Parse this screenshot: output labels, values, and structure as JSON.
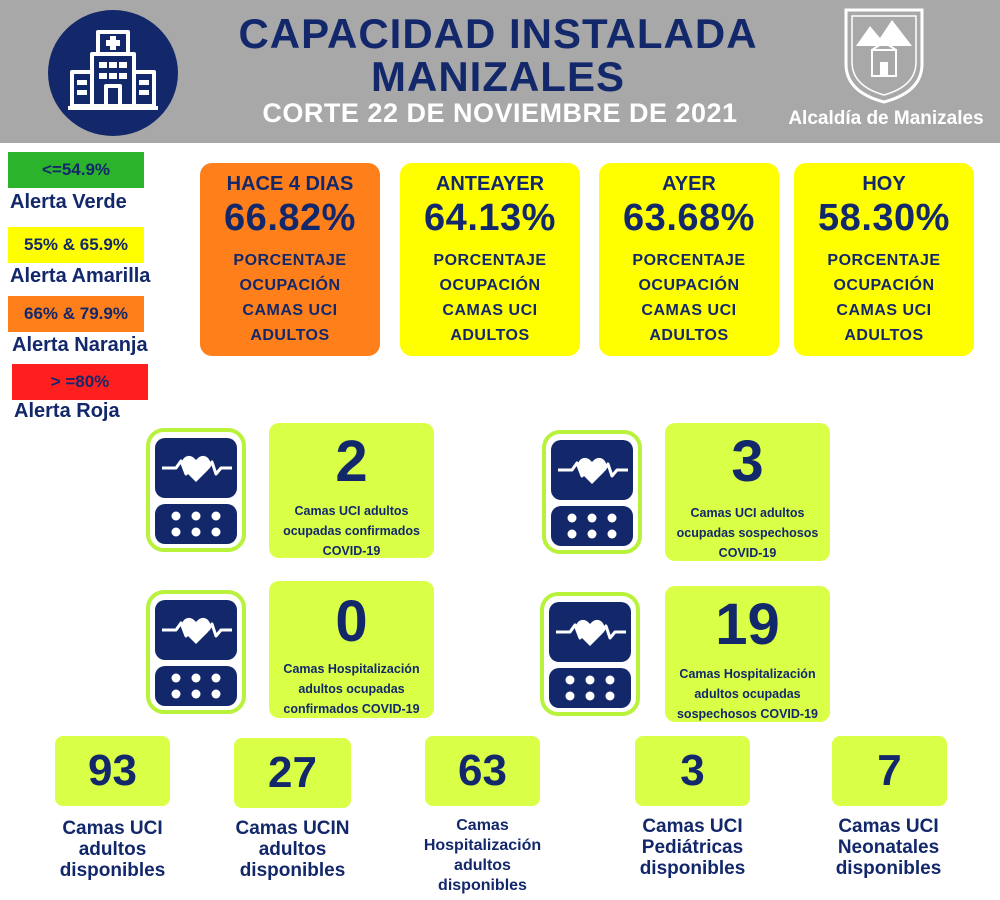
{
  "header": {
    "title_line1": "CAPACIDAD INSTALADA",
    "title_line2": "MANIZALES",
    "subtitle": "CORTE 22 DE NOVIEMBRE  DE 2021",
    "org_name": "Alcaldía de Manizales",
    "logo_icon": "hospital-building-icon",
    "crest_icon": "manizales-coat-of-arms-icon",
    "colors": {
      "header_bg": "#a8a8a8",
      "navy": "#13286b"
    }
  },
  "legend": [
    {
      "range": "<=54.9%",
      "label": "Alerta Verde",
      "color": "#2bb32b"
    },
    {
      "range": "55% & 65.9%",
      "label": "Alerta Amarilla",
      "color": "#ffff00"
    },
    {
      "range": "66% & 79.9%",
      "label": "Alerta Naranja",
      "color": "#ff7f1a"
    },
    {
      "range": "> =80%",
      "label": "Alerta Roja",
      "color": "#ff1f1f"
    }
  ],
  "occupancy_cards": [
    {
      "period": "HACE 4 DIAS",
      "value": "66.82%",
      "line1": "PORCENTAJE",
      "line2": "OCUPACIÓN",
      "line3": "CAMAS UCI",
      "line4": "ADULTOS",
      "level": "naranja",
      "color": "#ff7f1a"
    },
    {
      "period": "ANTEAYER",
      "value": "64.13%",
      "line1": "PORCENTAJE",
      "line2": "OCUPACIÓN",
      "line3": "CAMAS UCI",
      "line4": "ADULTOS",
      "level": "amarilla",
      "color": "#ffff00"
    },
    {
      "period": "AYER",
      "value": "63.68%",
      "line1": "PORCENTAJE",
      "line2": "OCUPACIÓN",
      "line3": "CAMAS UCI",
      "line4": "ADULTOS",
      "level": "amarilla",
      "color": "#ffff00"
    },
    {
      "period": "HOY",
      "value": "58.30%",
      "line1": "PORCENTAJE",
      "line2": "OCUPACIÓN",
      "line3": "CAMAS UCI",
      "line4": "ADULTOS",
      "level": "amarilla",
      "color": "#ffff00"
    }
  ],
  "covid_stats": [
    {
      "value": "2",
      "line1": "Camas UCI adultos",
      "line2": "ocupadas confirmados",
      "line3": "COVID-19",
      "icon": "heart-monitor-icon"
    },
    {
      "value": "3",
      "line1": "Camas UCI adultos",
      "line2": "ocupadas sospechosos",
      "line3": "COVID-19",
      "icon": "heart-monitor-icon"
    },
    {
      "value": "0",
      "line1": "Camas  Hospitalización",
      "line2": "adultos ocupadas",
      "line3": "confirmados COVID-19",
      "icon": "heart-monitor-icon"
    },
    {
      "value": "19",
      "line1": "Camas  Hospitalización",
      "line2": "adultos ocupadas",
      "line3": "sospechosos COVID-19",
      "icon": "heart-monitor-icon"
    }
  ],
  "availability": [
    {
      "value": "93",
      "line1": "Camas UCI",
      "line2": "adultos",
      "line3": "disponibles"
    },
    {
      "value": "27",
      "line1": "Camas UCIN",
      "line2": "adultos",
      "line3": "disponibles"
    },
    {
      "value": "63",
      "line1": "Camas",
      "line2": "Hospitalización",
      "line3": "adultos",
      "line4": "disponibles"
    },
    {
      "value": "3",
      "line1": "Camas  UCI",
      "line2": "Pediátricas",
      "line3": "disponibles"
    },
    {
      "value": "7",
      "line1": "Camas  UCI",
      "line2": "Neonatales",
      "line3": "disponibles"
    }
  ],
  "accent_green": "#d9ff46"
}
